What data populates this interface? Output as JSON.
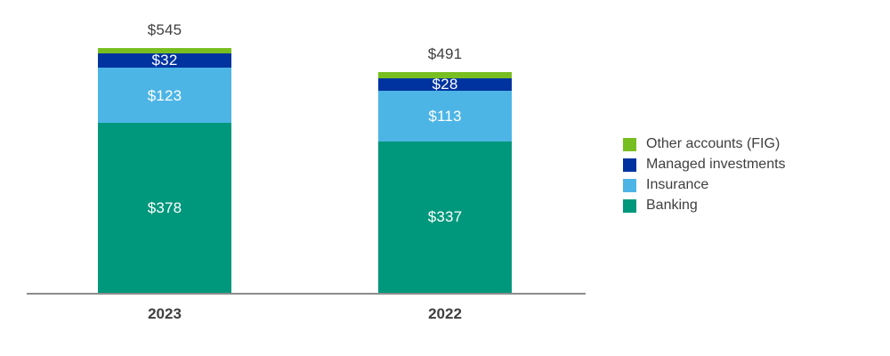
{
  "chart_data": {
    "type": "bar",
    "subtype": "stacked-column",
    "title": "",
    "xlabel": "",
    "ylabel": "",
    "grid": false,
    "legend_position": "right",
    "axis_color": "#8c8c8c",
    "ylim": [
      0,
      560
    ],
    "categories": [
      "2023",
      "2022"
    ],
    "totals": [
      545,
      491
    ],
    "total_labels": [
      "$545",
      "$491"
    ],
    "series": [
      {
        "name": "Banking",
        "color": "#00987c",
        "values": [
          378,
          337
        ],
        "labels": [
          "$378",
          "$337"
        ]
      },
      {
        "name": "Insurance",
        "color": "#4db5e6",
        "values": [
          123,
          113
        ],
        "labels": [
          "$123",
          "$113"
        ]
      },
      {
        "name": "Managed investments",
        "color": "#0033a0",
        "values": [
          32,
          28
        ],
        "labels": [
          "$32",
          "$28"
        ]
      },
      {
        "name": "Other accounts (FIG)",
        "color": "#78be20",
        "values": [
          12,
          13
        ],
        "labels": [
          "",
          ""
        ]
      }
    ]
  }
}
